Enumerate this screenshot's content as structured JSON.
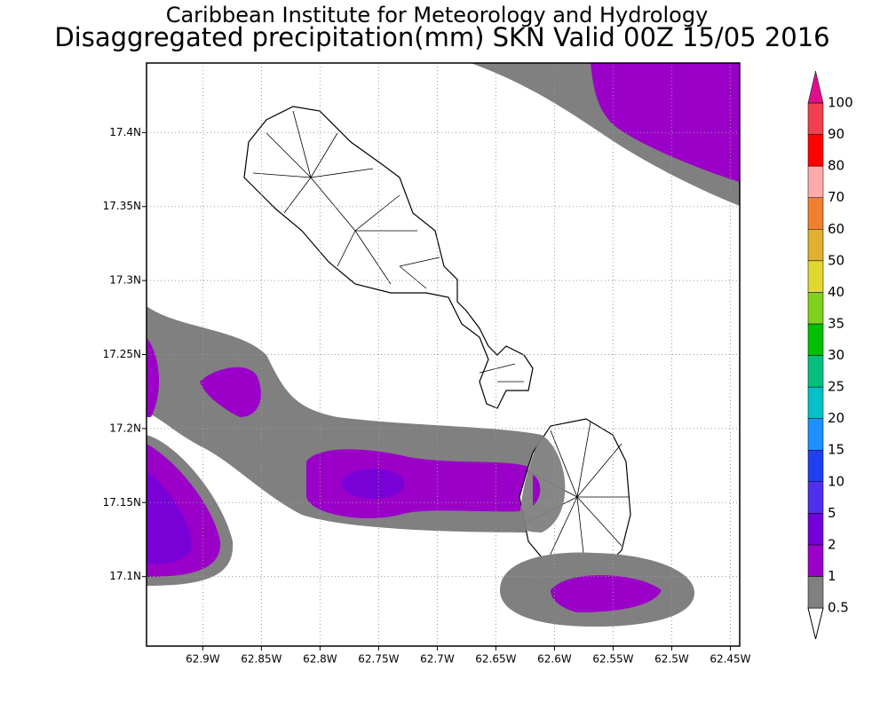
{
  "chart_data": {
    "type": "map",
    "title": "Caribbean Institute for Meteorology and Hydrology",
    "subtitle": "Disaggregated precipitation(mm) SKN Valid 00Z 15/05 2016",
    "xlim": [
      -62.948,
      -62.442
    ],
    "ylim": [
      17.053,
      17.447
    ],
    "xticks": [
      {
        "value": -62.9,
        "label": "62.9W"
      },
      {
        "value": -62.85,
        "label": "62.85W"
      },
      {
        "value": -62.8,
        "label": "62.8W"
      },
      {
        "value": -62.75,
        "label": "62.75W"
      },
      {
        "value": -62.7,
        "label": "62.7W"
      },
      {
        "value": -62.65,
        "label": "62.65W"
      },
      {
        "value": -62.6,
        "label": "62.6W"
      },
      {
        "value": -62.55,
        "label": "62.55W"
      },
      {
        "value": -62.5,
        "label": "62.5W"
      },
      {
        "value": -62.45,
        "label": "62.45W"
      }
    ],
    "yticks": [
      {
        "value": 17.1,
        "label": "17.1N"
      },
      {
        "value": 17.15,
        "label": "17.15N"
      },
      {
        "value": 17.2,
        "label": "17.2N"
      },
      {
        "value": 17.25,
        "label": "17.25N"
      },
      {
        "value": 17.3,
        "label": "17.3N"
      },
      {
        "value": 17.35,
        "label": "17.35N"
      },
      {
        "value": 17.4,
        "label": "17.4N"
      }
    ],
    "grid": true,
    "colorbar": {
      "levels": [
        0.5,
        1,
        2,
        5,
        10,
        15,
        20,
        25,
        30,
        35,
        40,
        50,
        60,
        70,
        80,
        90,
        100
      ],
      "colors": [
        "#808080",
        "#9b00c8",
        "#7200d8",
        "#5030f0",
        "#2040f0",
        "#1e90ff",
        "#00c0c8",
        "#00c080",
        "#00c000",
        "#80d020",
        "#e0d830",
        "#e0b030",
        "#f08030",
        "#ffaaaa",
        "#ff0000",
        "#f04050"
      ],
      "over_color": "#e0108a"
    }
  }
}
